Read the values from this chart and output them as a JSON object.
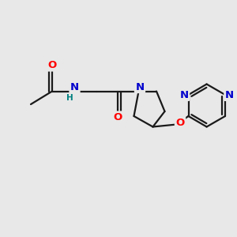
{
  "bg_color": "#e8e8e8",
  "bond_color": "#1a1a1a",
  "bond_width": 1.6,
  "atom_colors": {
    "O": "#ff0000",
    "N": "#0000cd",
    "H": "#008080",
    "C": "#1a1a1a"
  },
  "font_size": 8.5,
  "fig_size": [
    3.0,
    3.0
  ],
  "dpi": 100,
  "xlim": [
    0,
    10
  ],
  "ylim": [
    0,
    10
  ]
}
